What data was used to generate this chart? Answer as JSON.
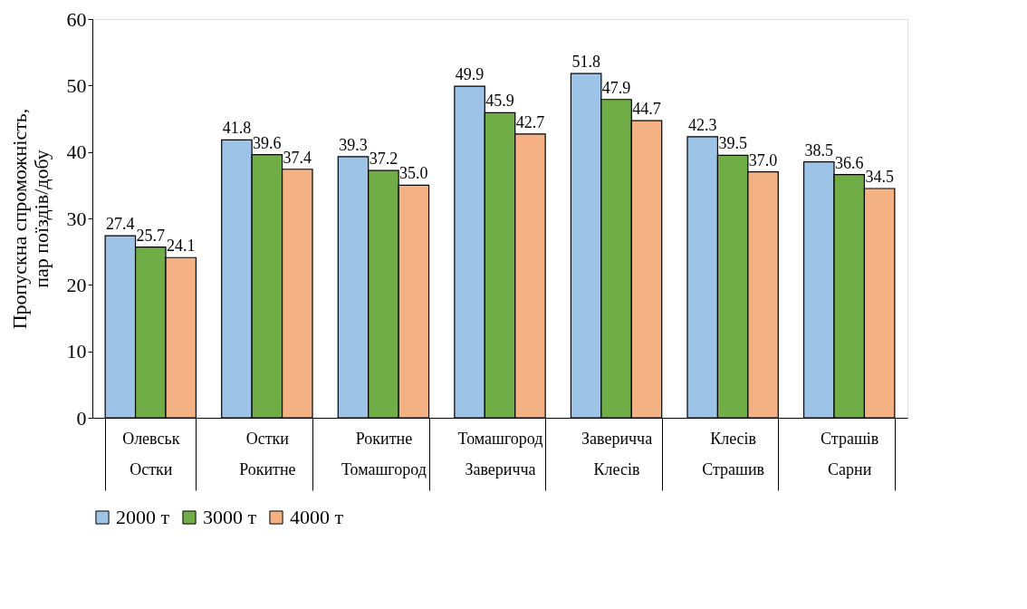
{
  "chart_data": {
    "type": "bar",
    "ylabel": "Пропускна спроможність,\nпар поїздів/добу",
    "categories": [
      "Олевськ\nОстки",
      "Остки\nРокитне",
      "Рокитне\nТомашгород",
      "Томашгород\nЗаверичча",
      "Заверичча\nКлесів",
      "Клесів\nСтрашив",
      "Страшів\nСарни"
    ],
    "series": [
      {
        "name": "2000 т",
        "color": "#9dc3e6",
        "values": [
          27.4,
          41.8,
          39.3,
          49.9,
          51.8,
          42.3,
          38.5
        ]
      },
      {
        "name": "3000 т",
        "color": "#70ad47",
        "values": [
          25.7,
          39.6,
          37.2,
          45.9,
          47.9,
          39.5,
          36.6
        ]
      },
      {
        "name": "4000 т",
        "color": "#f4b183",
        "values": [
          24.1,
          37.4,
          35.0,
          42.7,
          44.7,
          37.0,
          34.5
        ]
      }
    ],
    "value_labels": [
      [
        "27.4",
        "41.8",
        "39.3",
        "49.9",
        "51.8",
        "42.3",
        "38.5"
      ],
      [
        "25.7",
        "39.6",
        "37.2",
        "45.9",
        "47.9",
        "39.5",
        "36.6"
      ],
      [
        "24.1",
        "37.4",
        "35.0",
        "42.7",
        "44.7",
        "37.0",
        "34.5"
      ]
    ],
    "ylim": [
      0,
      60
    ],
    "yticks": [
      0,
      10,
      20,
      30,
      40,
      50,
      60
    ],
    "grid": false,
    "legend": "bottom"
  }
}
